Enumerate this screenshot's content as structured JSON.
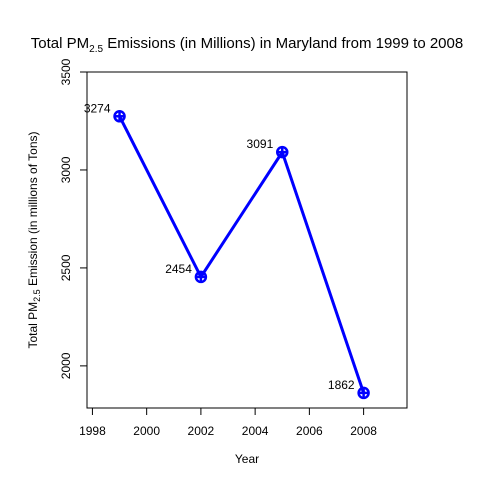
{
  "chart_data": {
    "type": "line",
    "title": {
      "prefix": "Total PM",
      "subscript": "2.5",
      "suffix": " Emissions (in Millions) in Maryland from 1999 to 2008"
    },
    "xlabel": "Year",
    "ylabel": {
      "prefix": "Total PM",
      "subscript": "2.5",
      "suffix": " Emission (in millions of Tons)"
    },
    "xlim": [
      1997.8,
      2009.6
    ],
    "ylim": [
      1785,
      3500
    ],
    "x_ticks": [
      1998,
      2000,
      2002,
      2004,
      2006,
      2008
    ],
    "y_ticks": [
      2000,
      2500,
      3000,
      3500
    ],
    "x": [
      1999,
      2002,
      2005,
      2008
    ],
    "series": [
      {
        "values": [
          3274,
          2454,
          3091,
          1862
        ],
        "labels": [
          "3274",
          "2454",
          "3091",
          "1862"
        ],
        "color": "#0000ff"
      }
    ],
    "grid": false,
    "legend": "none"
  }
}
